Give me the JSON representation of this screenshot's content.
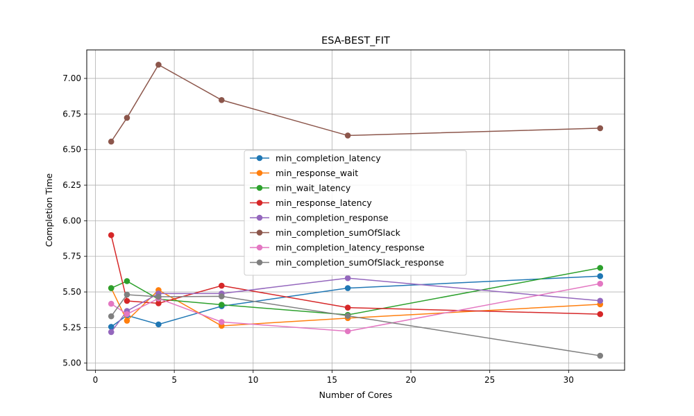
{
  "chart_data": {
    "type": "line",
    "title": "ESA-BEST_FIT",
    "xlabel": "Number of Cores",
    "ylabel": "Completion Time",
    "xlim": [
      -0.55,
      33.55
    ],
    "ylim": [
      4.95,
      7.2
    ],
    "xticks": [
      0,
      5,
      10,
      15,
      20,
      25,
      30
    ],
    "yticks": [
      5.0,
      5.25,
      5.5,
      5.75,
      6.0,
      6.25,
      6.5,
      6.75,
      7.0
    ],
    "ytick_format": "2dp",
    "grid": true,
    "legend_position": "center",
    "x": [
      1,
      2,
      4,
      8,
      16,
      32
    ],
    "series": [
      {
        "name": "min_completion_latency",
        "color": "#1f77b4",
        "values": [
          5.255,
          5.335,
          5.272,
          5.4,
          5.527,
          5.611
        ]
      },
      {
        "name": "min_response_wait",
        "color": "#ff7f0e",
        "values": [
          5.527,
          5.298,
          5.513,
          5.262,
          5.316,
          5.413
        ]
      },
      {
        "name": "min_wait_latency",
        "color": "#2ca02c",
        "values": [
          5.527,
          5.576,
          5.449,
          5.41,
          5.339,
          5.669
        ]
      },
      {
        "name": "min_response_latency",
        "color": "#d62728",
        "values": [
          5.899,
          5.437,
          5.42,
          5.544,
          5.39,
          5.344
        ]
      },
      {
        "name": "min_completion_response",
        "color": "#9467bd",
        "values": [
          5.218,
          5.366,
          5.489,
          5.489,
          5.597,
          5.438
        ]
      },
      {
        "name": "min_completion_sumOfSlack",
        "color": "#8c564b",
        "values": [
          6.556,
          6.723,
          7.096,
          6.848,
          6.599,
          6.65
        ]
      },
      {
        "name": "min_completion_latency_response",
        "color": "#e377c2",
        "values": [
          5.417,
          5.344,
          5.454,
          5.289,
          5.224,
          5.558
        ]
      },
      {
        "name": "min_completion_sumOfSlack_response",
        "color": "#7f7f7f",
        "values": [
          5.329,
          5.481,
          5.466,
          5.469,
          5.332,
          5.052
        ]
      }
    ]
  }
}
